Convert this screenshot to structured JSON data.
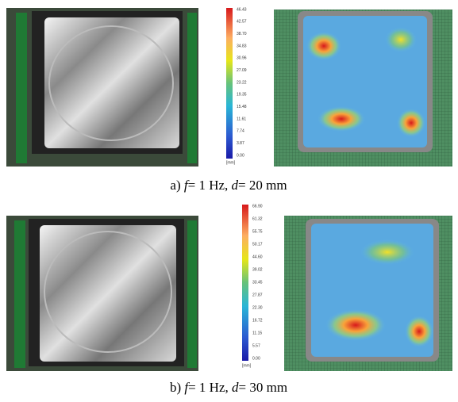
{
  "figures": [
    {
      "legend": {
        "ticks": [
          "46.43",
          "42.57",
          "38.70",
          "34.83",
          "30.96",
          "27.09",
          "23.22",
          "19.35",
          "15.48",
          "11.61",
          "7.74",
          "3.87",
          "0.00"
        ],
        "unit": "[mm]"
      },
      "caption": {
        "label": "a)",
        "f_symbol": "f",
        "f_value": "= 1 Hz,",
        "d_symbol": "d",
        "d_value": "= 20 mm"
      }
    },
    {
      "legend": {
        "ticks": [
          "66.90",
          "61.32",
          "55.75",
          "50.17",
          "44.60",
          "39.02",
          "33.45",
          "27.87",
          "22.30",
          "16.72",
          "11.15",
          "5.57",
          "0.00"
        ],
        "unit": "[mm]"
      },
      "caption": {
        "label": "b)",
        "f_symbol": "f",
        "f_value": "= 1 Hz,",
        "d_symbol": "d",
        "d_value": "= 30 mm"
      }
    }
  ]
}
